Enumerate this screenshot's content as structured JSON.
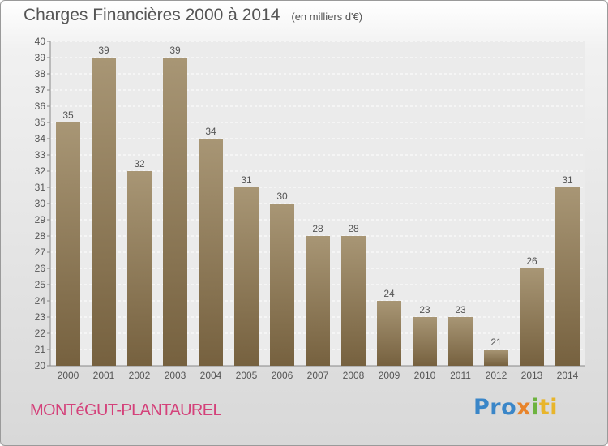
{
  "title": "Charges Financières 2000 à 2014",
  "unit": "(en milliers d'€)",
  "commune": "MONTéGUT-PLANTAUREL",
  "logo": {
    "p1": "Pro",
    "p2": "x",
    "p3": "i",
    "p4": "ti"
  },
  "colors": {
    "bar_top": "#a89675",
    "bar_bottom": "#76613f",
    "text": "#555555",
    "commune": "#d4417a"
  },
  "chart_data": {
    "type": "bar",
    "categories": [
      "2000",
      "2001",
      "2002",
      "2003",
      "2004",
      "2005",
      "2006",
      "2007",
      "2008",
      "2009",
      "2010",
      "2011",
      "2012",
      "2013",
      "2014"
    ],
    "values": [
      35,
      39,
      32,
      39,
      34,
      31,
      30,
      28,
      28,
      24,
      23,
      23,
      21,
      26,
      31
    ],
    "ylim": [
      20,
      40
    ],
    "yticks": [
      20,
      21,
      22,
      23,
      24,
      25,
      26,
      27,
      28,
      29,
      30,
      31,
      32,
      33,
      34,
      35,
      36,
      37,
      38,
      39,
      40
    ],
    "grid": true
  }
}
